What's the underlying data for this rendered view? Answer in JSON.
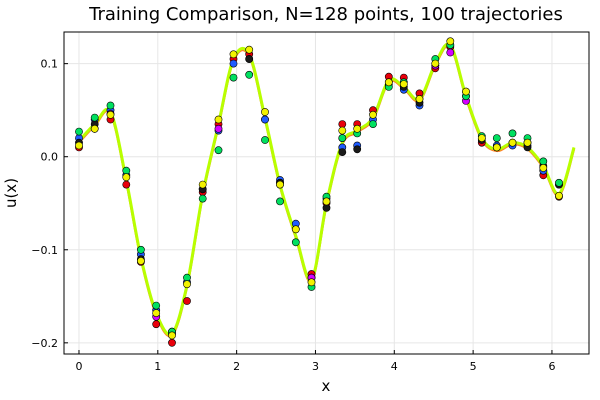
{
  "chart_data": {
    "type": "scatter",
    "title": "Training Comparison, N=128 points, 100 trajectories",
    "xlabel": "x",
    "ylabel": "u(x)",
    "xlim": [
      -0.19,
      6.47
    ],
    "ylim": [
      -0.212,
      0.134
    ],
    "xticks": [
      0,
      1,
      2,
      3,
      4,
      5,
      6
    ],
    "xtick_labels": [
      "0",
      "1",
      "2",
      "3",
      "4",
      "5",
      "6"
    ],
    "yticks": [
      -0.2,
      -0.1,
      0.0,
      0.1
    ],
    "ytick_labels": [
      "−0.2",
      "−0.1",
      "0.0",
      "0.1"
    ],
    "grid": true,
    "legend": "none",
    "colors": {
      "red": "#e8000b",
      "blue": "#1f5cff",
      "magenta": "#d400ff",
      "dark": "#1a1a1a",
      "spring": "#00e060",
      "yellow": "#f2f200",
      "line": "#b8ff00",
      "line_alt": "#ff6a00"
    },
    "line_x": [
      0.0,
      0.2,
      0.4,
      0.6,
      0.785,
      0.98,
      1.18,
      1.37,
      1.57,
      1.77,
      1.96,
      2.16,
      2.36,
      2.55,
      2.75,
      2.95,
      3.14,
      3.34,
      3.53,
      3.73,
      3.93,
      4.12,
      4.32,
      4.52,
      4.71,
      4.91,
      5.11,
      5.3,
      5.5,
      5.69,
      5.89,
      6.09,
      6.28
    ],
    "line_y": [
      0.017,
      0.035,
      0.048,
      -0.025,
      -0.108,
      -0.168,
      -0.19,
      -0.138,
      -0.04,
      0.035,
      0.105,
      0.11,
      0.042,
      -0.03,
      -0.085,
      -0.132,
      -0.05,
      0.015,
      0.028,
      0.042,
      0.082,
      0.075,
      0.062,
      0.1,
      0.12,
      0.065,
      0.02,
      0.008,
      0.015,
      0.01,
      -0.01,
      -0.04,
      0.01
    ],
    "series": [
      {
        "color": "red",
        "x": [
          0.0,
          0.2,
          0.4,
          0.6,
          0.785,
          0.98,
          1.18,
          1.37,
          1.57,
          1.77,
          1.96,
          2.16,
          2.36,
          2.55,
          2.75,
          2.95,
          3.14,
          3.34,
          3.53,
          3.73,
          3.93,
          4.12,
          4.32,
          4.52,
          4.71,
          4.91,
          5.11,
          5.3,
          5.5,
          5.69,
          5.89,
          6.09
        ],
        "y": [
          0.01,
          0.03,
          0.04,
          -0.03,
          -0.113,
          -0.18,
          -0.2,
          -0.155,
          -0.038,
          0.035,
          0.105,
          0.11,
          0.04,
          -0.03,
          -0.078,
          -0.126,
          -0.05,
          0.035,
          0.035,
          0.05,
          0.086,
          0.085,
          0.068,
          0.095,
          0.118,
          0.07,
          0.015,
          0.01,
          0.015,
          0.015,
          -0.02,
          -0.043
        ]
      },
      {
        "color": "blue",
        "x": [
          0.0,
          0.2,
          0.4,
          0.6,
          0.785,
          0.98,
          1.18,
          1.37,
          1.57,
          1.77,
          1.96,
          2.16,
          2.36,
          2.55,
          2.75,
          2.95,
          3.14,
          3.34,
          3.53,
          3.73,
          3.93,
          4.12,
          4.32,
          4.52,
          4.71,
          4.91,
          5.11,
          5.3,
          5.5,
          5.69,
          5.89,
          6.09
        ],
        "y": [
          0.02,
          0.04,
          0.05,
          -0.02,
          -0.105,
          -0.165,
          -0.188,
          -0.135,
          -0.035,
          0.028,
          0.1,
          0.105,
          0.04,
          -0.025,
          -0.072,
          -0.13,
          -0.045,
          0.01,
          0.012,
          0.04,
          0.078,
          0.072,
          0.055,
          0.098,
          0.12,
          0.065,
          0.02,
          0.012,
          0.012,
          0.012,
          -0.015,
          -0.03
        ]
      },
      {
        "color": "magenta",
        "x": [
          0.4,
          0.98,
          1.77,
          2.55,
          2.95,
          3.34,
          3.93,
          4.52,
          4.71,
          4.91
        ],
        "y": [
          0.046,
          -0.172,
          0.03,
          -0.028,
          -0.13,
          0.02,
          0.08,
          0.098,
          0.112,
          0.06
        ]
      },
      {
        "color": "dark",
        "x": [
          0.0,
          0.2,
          0.785,
          1.18,
          1.57,
          2.16,
          2.55,
          3.14,
          3.34,
          3.53,
          4.12,
          4.32,
          4.52,
          5.11,
          5.3,
          5.69,
          5.89,
          6.09
        ],
        "y": [
          0.015,
          0.035,
          -0.11,
          -0.19,
          -0.035,
          0.105,
          -0.028,
          -0.055,
          0.005,
          0.008,
          0.075,
          0.058,
          0.1,
          0.018,
          0.01,
          0.01,
          -0.01,
          -0.03
        ]
      },
      {
        "color": "spring",
        "x": [
          0.0,
          0.2,
          0.4,
          0.6,
          0.785,
          0.98,
          1.18,
          1.37,
          1.57,
          1.77,
          1.96,
          2.16,
          2.36,
          2.55,
          2.75,
          2.95,
          3.14,
          3.34,
          3.53,
          3.73,
          3.93,
          4.12,
          4.32,
          4.52,
          4.71,
          4.91,
          5.11,
          5.3,
          5.5,
          5.69,
          5.89,
          6.09
        ],
        "y": [
          0.027,
          0.042,
          0.055,
          -0.015,
          -0.1,
          -0.16,
          -0.188,
          -0.13,
          -0.045,
          0.007,
          0.085,
          0.088,
          0.018,
          -0.048,
          -0.092,
          -0.14,
          -0.043,
          0.02,
          0.025,
          0.035,
          0.075,
          0.08,
          0.062,
          0.105,
          0.12,
          0.065,
          0.022,
          0.02,
          0.025,
          0.02,
          -0.005,
          -0.028
        ]
      },
      {
        "color": "yellow",
        "x": [
          0.0,
          0.2,
          0.4,
          0.6,
          0.785,
          0.98,
          1.18,
          1.37,
          1.57,
          1.77,
          1.96,
          2.16,
          2.36,
          2.55,
          2.75,
          2.95,
          3.14,
          3.34,
          3.53,
          3.73,
          3.93,
          4.12,
          4.32,
          4.52,
          4.71,
          4.91,
          5.11,
          5.3,
          5.5,
          5.69,
          5.89,
          6.09
        ],
        "y": [
          0.012,
          0.03,
          0.045,
          -0.022,
          -0.112,
          -0.168,
          -0.192,
          -0.137,
          -0.03,
          0.04,
          0.11,
          0.115,
          0.048,
          -0.03,
          -0.078,
          -0.135,
          -0.048,
          0.028,
          0.03,
          0.045,
          0.08,
          0.078,
          0.062,
          0.1,
          0.124,
          0.07,
          0.02,
          0.01,
          0.015,
          0.015,
          -0.012,
          -0.042
        ]
      }
    ]
  }
}
